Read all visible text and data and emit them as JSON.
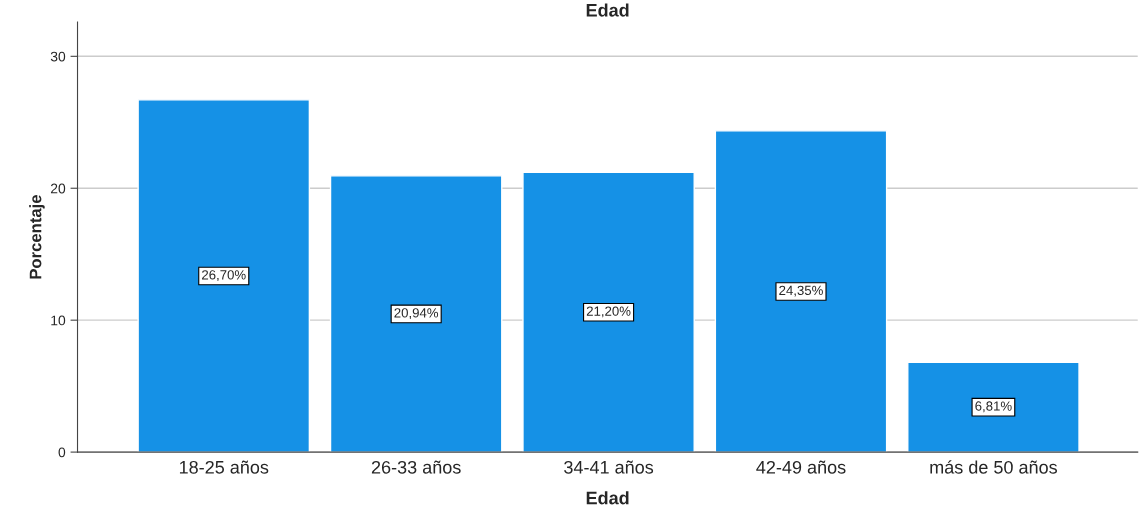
{
  "chart_data": {
    "type": "bar",
    "title": "Edad",
    "xlabel": "Edad",
    "ylabel": "Porcentaje",
    "categories": [
      "18-25 años",
      "26-33 años",
      "34-41 años",
      "42-49 años",
      "más de 50 años"
    ],
    "values": [
      26.7,
      20.94,
      21.2,
      24.35,
      6.81
    ],
    "value_labels": [
      "26,70%",
      "20,94%",
      "21,20%",
      "24,35%",
      "6,81%"
    ],
    "color": "#1591e6",
    "ylim": [
      0,
      32.6
    ],
    "yticks": [
      0,
      10,
      20,
      30
    ],
    "grid": "y",
    "legend": false
  }
}
